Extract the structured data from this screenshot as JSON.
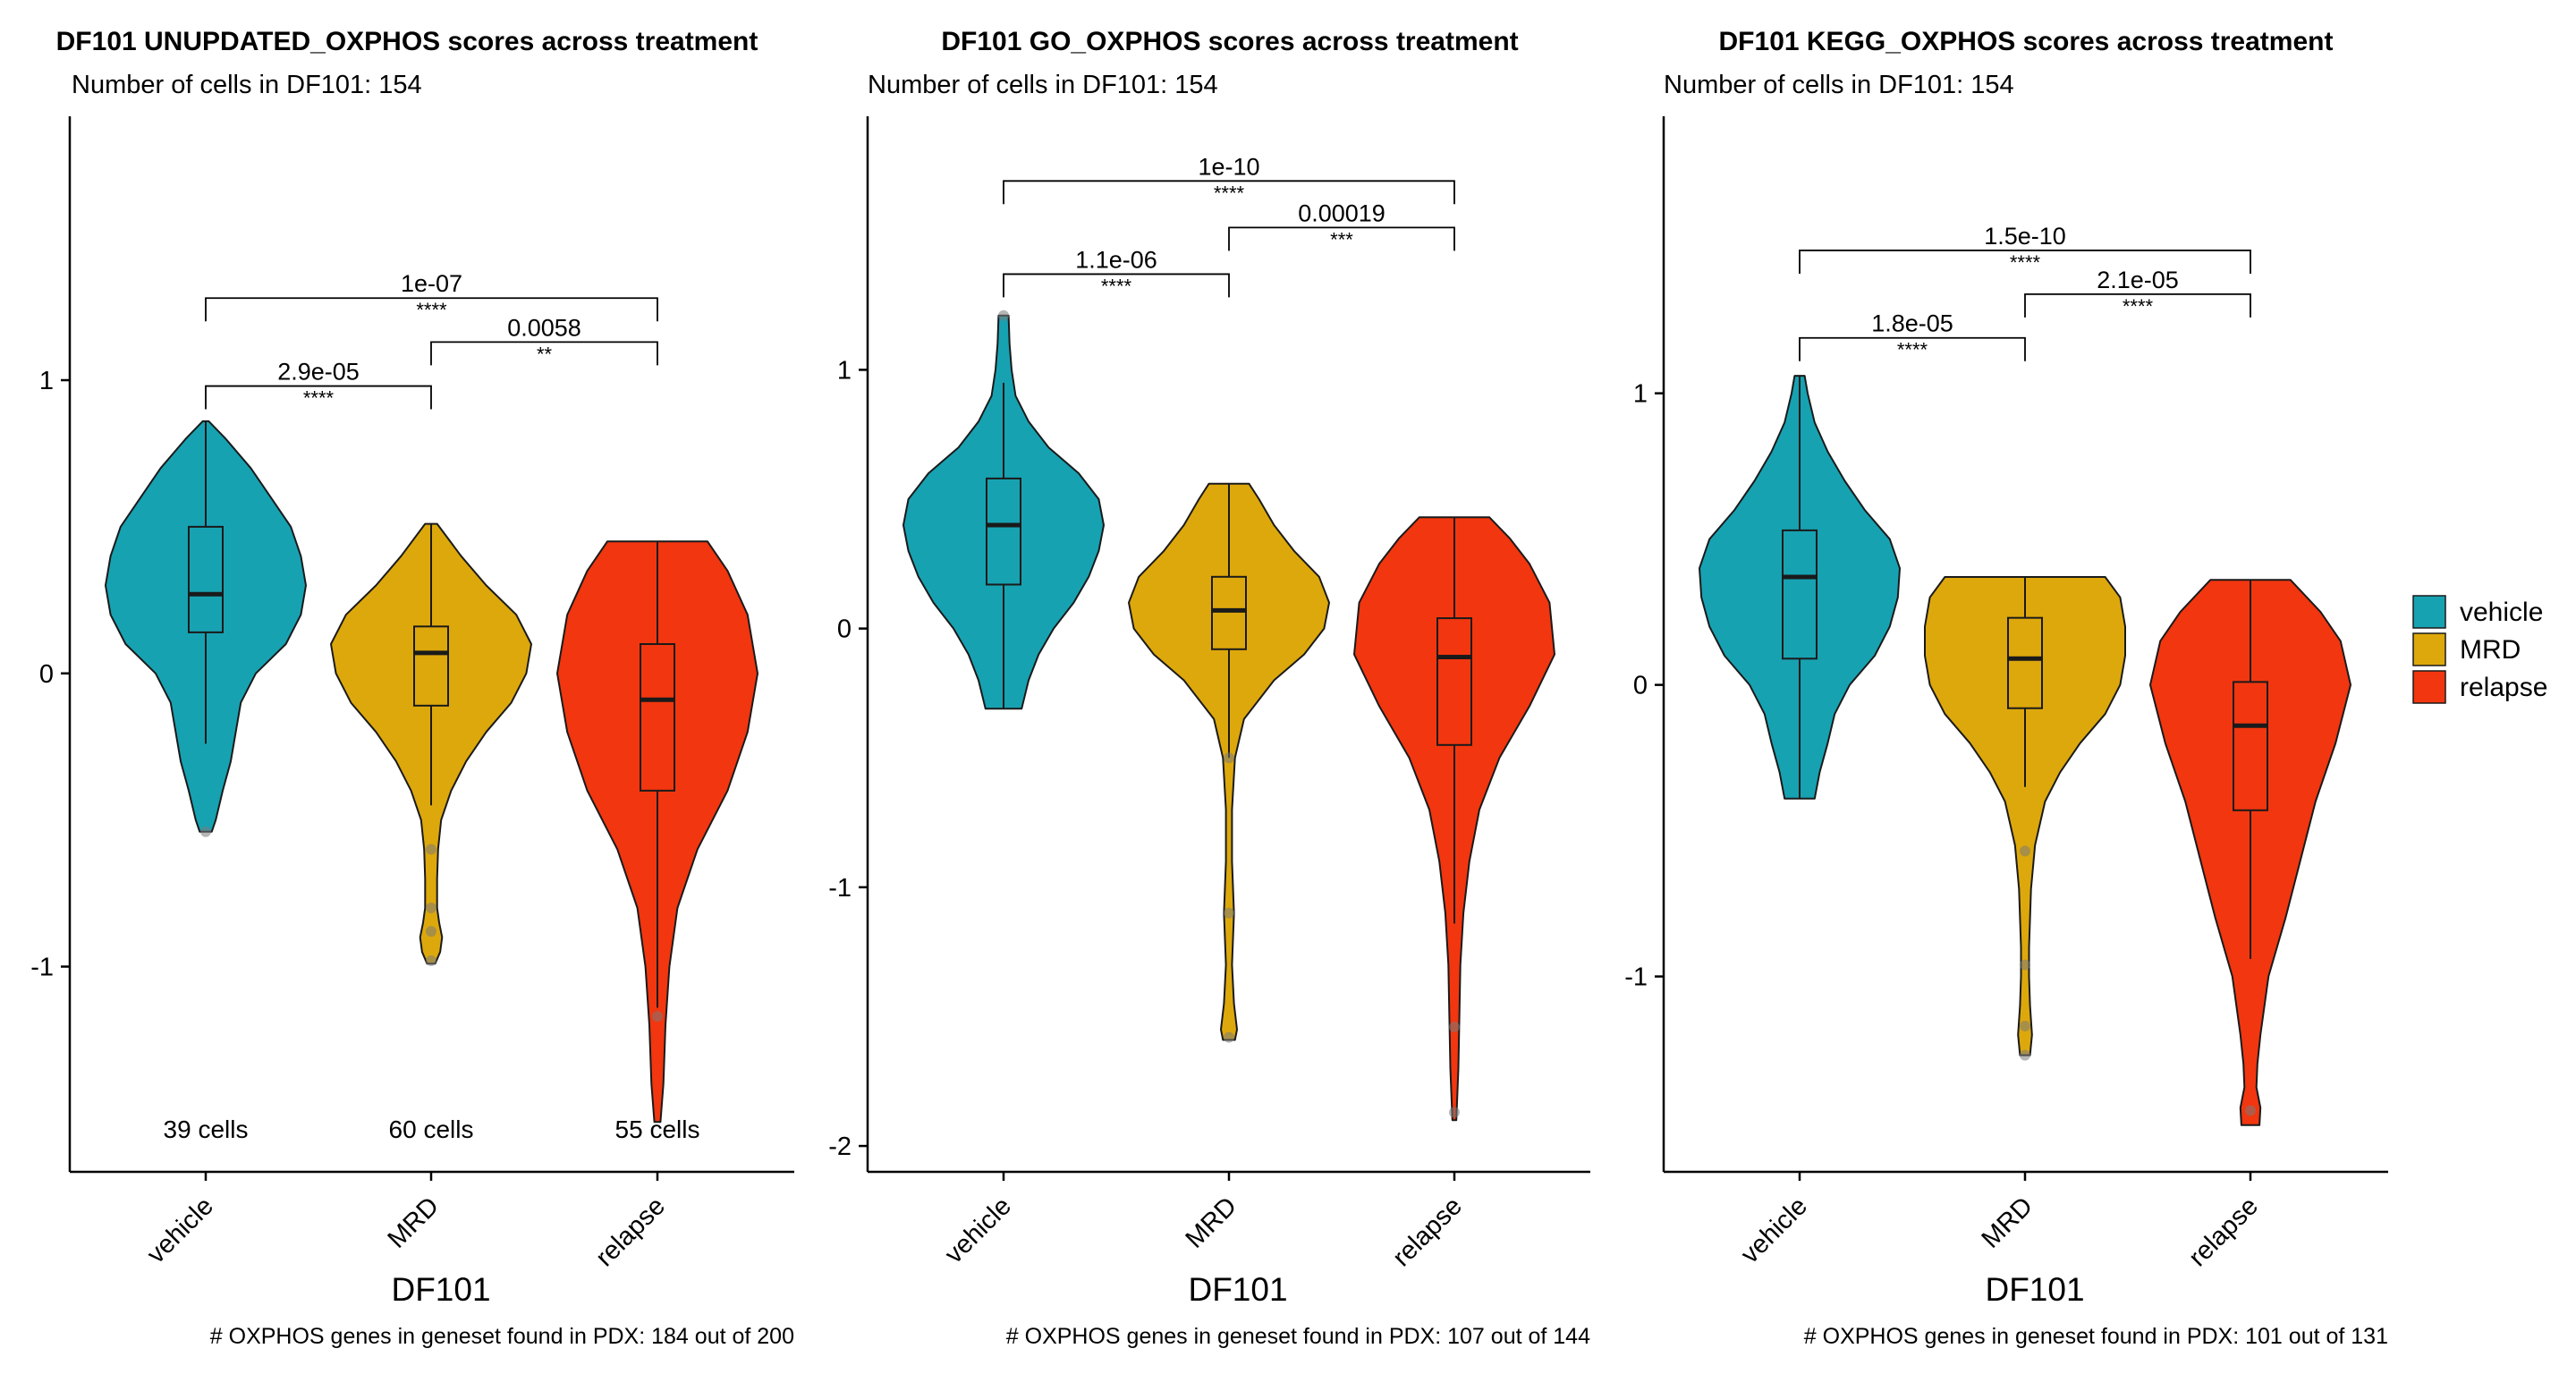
{
  "colors": {
    "vehicle": "#17A2B2",
    "MRD": "#DDA80C",
    "relapse": "#F2360F",
    "outline": "#1a1a1a",
    "point": "#7a7a7a"
  },
  "legend": {
    "items": [
      "vehicle",
      "MRD",
      "relapse"
    ]
  },
  "chart_data": [
    {
      "type": "violin",
      "title": "DF101 UNUPDATED_OXPHOS scores across treatment",
      "subtitle": "Number of cells in DF101: 154",
      "xlabel": "DF101",
      "caption": "# OXPHOS genes in geneset found in PDX: 184 out of 200",
      "categories": [
        "vehicle",
        "MRD",
        "relapse"
      ],
      "ylim": [
        -1.7,
        1.9
      ],
      "yticks": [
        -1,
        0,
        1
      ],
      "cell_counts": [
        "39 cells",
        "60 cells",
        "55 cells"
      ],
      "groups": [
        {
          "name": "vehicle",
          "min": -0.54,
          "max": 0.86,
          "q1": 0.14,
          "median": 0.27,
          "q3": 0.5,
          "whisker_low": -0.24,
          "whisker_high": 0.86,
          "density": [
            [
              -0.54,
              0.06
            ],
            [
              -0.5,
              0.1
            ],
            [
              -0.4,
              0.17
            ],
            [
              -0.3,
              0.25
            ],
            [
              -0.2,
              0.3
            ],
            [
              -0.1,
              0.35
            ],
            [
              0.0,
              0.5
            ],
            [
              0.1,
              0.8
            ],
            [
              0.2,
              0.95
            ],
            [
              0.3,
              1.0
            ],
            [
              0.4,
              0.95
            ],
            [
              0.5,
              0.85
            ],
            [
              0.6,
              0.65
            ],
            [
              0.7,
              0.45
            ],
            [
              0.8,
              0.2
            ],
            [
              0.86,
              0.03
            ]
          ],
          "outliers": [
            -0.54
          ]
        },
        {
          "name": "MRD",
          "min": -0.99,
          "max": 0.51,
          "q1": -0.11,
          "median": 0.07,
          "q3": 0.16,
          "whisker_low": -0.45,
          "whisker_high": 0.51,
          "density": [
            [
              -0.99,
              0.04
            ],
            [
              -0.95,
              0.09
            ],
            [
              -0.9,
              0.11
            ],
            [
              -0.85,
              0.08
            ],
            [
              -0.8,
              0.06
            ],
            [
              -0.7,
              0.06
            ],
            [
              -0.6,
              0.07
            ],
            [
              -0.5,
              0.1
            ],
            [
              -0.4,
              0.2
            ],
            [
              -0.3,
              0.35
            ],
            [
              -0.2,
              0.55
            ],
            [
              -0.1,
              0.8
            ],
            [
              0.0,
              0.95
            ],
            [
              0.1,
              1.0
            ],
            [
              0.2,
              0.85
            ],
            [
              0.3,
              0.55
            ],
            [
              0.4,
              0.3
            ],
            [
              0.51,
              0.06
            ]
          ],
          "outliers": [
            -0.6,
            -0.8,
            -0.88,
            -0.98
          ]
        },
        {
          "name": "relapse",
          "min": -1.53,
          "max": 0.45,
          "q1": -0.4,
          "median": -0.09,
          "q3": 0.1,
          "whisker_low": -1.14,
          "whisker_high": 0.45,
          "density": [
            [
              -1.53,
              0.03
            ],
            [
              -1.4,
              0.06
            ],
            [
              -1.2,
              0.08
            ],
            [
              -1.0,
              0.12
            ],
            [
              -0.8,
              0.2
            ],
            [
              -0.6,
              0.4
            ],
            [
              -0.4,
              0.7
            ],
            [
              -0.2,
              0.9
            ],
            [
              0.0,
              1.0
            ],
            [
              0.2,
              0.9
            ],
            [
              0.35,
              0.7
            ],
            [
              0.45,
              0.5
            ]
          ],
          "outliers": [
            -1.17
          ]
        }
      ],
      "comparisons": [
        {
          "from": 0,
          "to": 1,
          "p": "2.9e-05",
          "stars": "****",
          "y": 0.98
        },
        {
          "from": 1,
          "to": 2,
          "p": "0.0058",
          "stars": "**",
          "y": 1.13
        },
        {
          "from": 0,
          "to": 2,
          "p": "1e-07",
          "stars": "****",
          "y": 1.28
        }
      ]
    },
    {
      "type": "violin",
      "title": "DF101 GO_OXPHOS scores across treatment",
      "subtitle": "Number of cells in DF101: 154",
      "xlabel": "DF101",
      "caption": "# OXPHOS genes in geneset found in PDX: 107 out of 144",
      "categories": [
        "vehicle",
        "MRD",
        "relapse"
      ],
      "ylim": [
        -2.1,
        1.98
      ],
      "yticks": [
        -2,
        -1,
        0,
        1
      ],
      "cell_counts": [],
      "groups": [
        {
          "name": "vehicle",
          "min": -0.31,
          "max": 1.21,
          "q1": 0.17,
          "median": 0.4,
          "q3": 0.58,
          "whisker_low": -0.31,
          "whisker_high": 0.95,
          "density": [
            [
              -0.31,
              0.18
            ],
            [
              -0.2,
              0.25
            ],
            [
              -0.1,
              0.35
            ],
            [
              0.0,
              0.5
            ],
            [
              0.1,
              0.7
            ],
            [
              0.2,
              0.85
            ],
            [
              0.3,
              0.95
            ],
            [
              0.4,
              1.0
            ],
            [
              0.5,
              0.95
            ],
            [
              0.6,
              0.75
            ],
            [
              0.7,
              0.45
            ],
            [
              0.8,
              0.25
            ],
            [
              0.9,
              0.12
            ],
            [
              1.0,
              0.08
            ],
            [
              1.1,
              0.06
            ],
            [
              1.21,
              0.05
            ]
          ],
          "outliers": [
            1.21
          ]
        },
        {
          "name": "MRD",
          "min": -1.59,
          "max": 0.56,
          "q1": -0.08,
          "median": 0.07,
          "q3": 0.2,
          "whisker_low": -0.5,
          "whisker_high": 0.56,
          "density": [
            [
              -1.59,
              0.06
            ],
            [
              -1.55,
              0.08
            ],
            [
              -1.45,
              0.05
            ],
            [
              -1.3,
              0.03
            ],
            [
              -1.1,
              0.05
            ],
            [
              -0.9,
              0.03
            ],
            [
              -0.7,
              0.03
            ],
            [
              -0.5,
              0.06
            ],
            [
              -0.35,
              0.15
            ],
            [
              -0.2,
              0.45
            ],
            [
              -0.1,
              0.75
            ],
            [
              0.0,
              0.95
            ],
            [
              0.1,
              1.0
            ],
            [
              0.2,
              0.9
            ],
            [
              0.3,
              0.65
            ],
            [
              0.4,
              0.45
            ],
            [
              0.5,
              0.3
            ],
            [
              0.56,
              0.2
            ]
          ],
          "outliers": [
            -0.5,
            -1.1,
            -1.58
          ]
        },
        {
          "name": "relapse",
          "min": -1.9,
          "max": 0.43,
          "q1": -0.45,
          "median": -0.11,
          "q3": 0.04,
          "whisker_low": -1.14,
          "whisker_high": 0.43,
          "density": [
            [
              -1.9,
              0.02
            ],
            [
              -1.7,
              0.04
            ],
            [
              -1.5,
              0.05
            ],
            [
              -1.3,
              0.06
            ],
            [
              -1.1,
              0.09
            ],
            [
              -0.9,
              0.15
            ],
            [
              -0.7,
              0.25
            ],
            [
              -0.5,
              0.45
            ],
            [
              -0.3,
              0.75
            ],
            [
              -0.1,
              1.0
            ],
            [
              0.1,
              0.95
            ],
            [
              0.25,
              0.75
            ],
            [
              0.35,
              0.55
            ],
            [
              0.43,
              0.35
            ]
          ],
          "outliers": [
            -1.54,
            -1.87
          ]
        }
      ],
      "comparisons": [
        {
          "from": 0,
          "to": 1,
          "p": "1.1e-06",
          "stars": "****",
          "y": 1.37
        },
        {
          "from": 1,
          "to": 2,
          "p": "0.00019",
          "stars": "***",
          "y": 1.55
        },
        {
          "from": 0,
          "to": 2,
          "p": "1e-10",
          "stars": "****",
          "y": 1.73
        }
      ]
    },
    {
      "type": "violin",
      "title": "DF101 KEGG_OXPHOS scores across treatment",
      "subtitle": "Number of cells in DF101: 154",
      "xlabel": "DF101",
      "caption": "# OXPHOS genes in geneset found in PDX: 101 out of 131",
      "categories": [
        "vehicle",
        "MRD",
        "relapse"
      ],
      "ylim": [
        -1.67,
        1.95
      ],
      "yticks": [
        -1,
        0,
        1
      ],
      "cell_counts": [],
      "groups": [
        {
          "name": "vehicle",
          "min": -0.39,
          "max": 1.06,
          "q1": 0.09,
          "median": 0.37,
          "q3": 0.53,
          "whisker_low": -0.39,
          "whisker_high": 1.06,
          "density": [
            [
              -0.39,
              0.15
            ],
            [
              -0.3,
              0.2
            ],
            [
              -0.2,
              0.28
            ],
            [
              -0.1,
              0.35
            ],
            [
              0.0,
              0.5
            ],
            [
              0.1,
              0.75
            ],
            [
              0.2,
              0.9
            ],
            [
              0.3,
              0.98
            ],
            [
              0.4,
              1.0
            ],
            [
              0.5,
              0.9
            ],
            [
              0.6,
              0.65
            ],
            [
              0.7,
              0.45
            ],
            [
              0.8,
              0.28
            ],
            [
              0.9,
              0.15
            ],
            [
              1.0,
              0.08
            ],
            [
              1.06,
              0.05
            ]
          ],
          "outliers": []
        },
        {
          "name": "MRD",
          "min": -1.27,
          "max": 0.37,
          "q1": -0.08,
          "median": 0.09,
          "q3": 0.23,
          "whisker_low": -0.35,
          "whisker_high": 0.37,
          "density": [
            [
              -1.27,
              0.05
            ],
            [
              -1.2,
              0.07
            ],
            [
              -1.1,
              0.05
            ],
            [
              -1.0,
              0.04
            ],
            [
              -0.9,
              0.04
            ],
            [
              -0.7,
              0.06
            ],
            [
              -0.55,
              0.1
            ],
            [
              -0.4,
              0.2
            ],
            [
              -0.3,
              0.35
            ],
            [
              -0.2,
              0.55
            ],
            [
              -0.1,
              0.8
            ],
            [
              0.0,
              0.95
            ],
            [
              0.1,
              1.0
            ],
            [
              0.2,
              1.0
            ],
            [
              0.3,
              0.95
            ],
            [
              0.37,
              0.8
            ]
          ],
          "outliers": [
            -0.57,
            -0.96,
            -1.17,
            -1.27
          ]
        },
        {
          "name": "relapse",
          "min": -1.51,
          "max": 0.36,
          "q1": -0.43,
          "median": -0.14,
          "q3": 0.01,
          "whisker_low": -0.94,
          "whisker_high": 0.36,
          "density": [
            [
              -1.51,
              0.09
            ],
            [
              -1.45,
              0.1
            ],
            [
              -1.38,
              0.06
            ],
            [
              -1.3,
              0.07
            ],
            [
              -1.2,
              0.1
            ],
            [
              -1.0,
              0.18
            ],
            [
              -0.8,
              0.35
            ],
            [
              -0.6,
              0.5
            ],
            [
              -0.4,
              0.65
            ],
            [
              -0.2,
              0.85
            ],
            [
              0.0,
              1.0
            ],
            [
              0.15,
              0.9
            ],
            [
              0.25,
              0.7
            ],
            [
              0.36,
              0.4
            ]
          ],
          "outliers": [
            -1.46
          ]
        }
      ],
      "comparisons": [
        {
          "from": 0,
          "to": 1,
          "p": "1.8e-05",
          "stars": "****",
          "y": 1.19
        },
        {
          "from": 1,
          "to": 2,
          "p": "2.1e-05",
          "stars": "****",
          "y": 1.34
        },
        {
          "from": 0,
          "to": 2,
          "p": "1.5e-10",
          "stars": "****",
          "y": 1.49
        }
      ]
    }
  ]
}
